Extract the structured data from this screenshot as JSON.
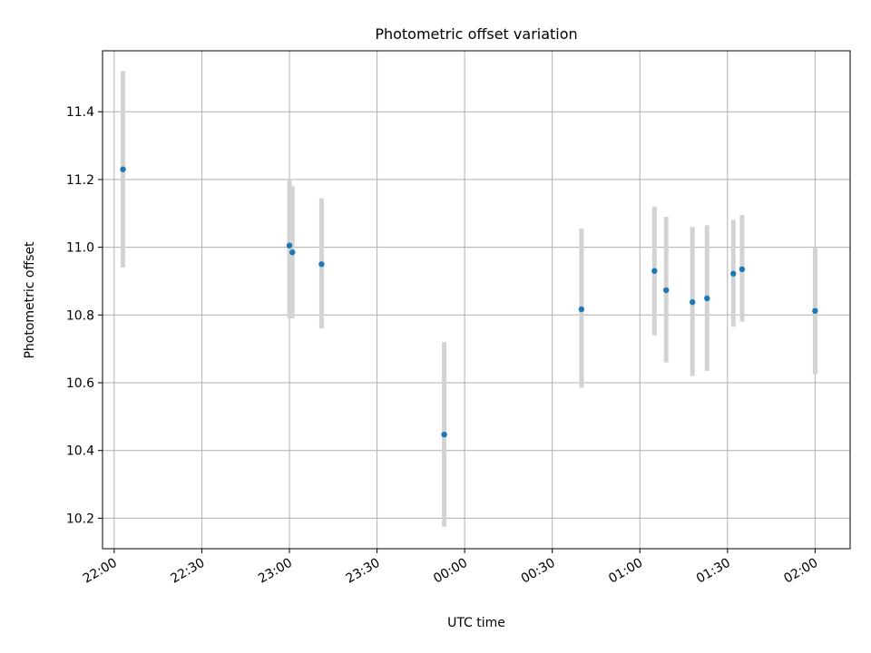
{
  "chart_data": {
    "type": "scatter",
    "title": "Photometric offset variation",
    "xlabel": "UTC time",
    "ylabel": "Photometric offset",
    "x_tick_labels": [
      "22:00",
      "22:30",
      "23:00",
      "23:30",
      "00:00",
      "00:30",
      "01:00",
      "01:30",
      "02:00"
    ],
    "y_tick_labels": [
      "10.2",
      "10.4",
      "10.6",
      "10.8",
      "11.0",
      "11.2",
      "11.4"
    ],
    "xlim": [
      "21:56",
      "02:12"
    ],
    "ylim": [
      10.11,
      11.58
    ],
    "grid": true,
    "series": [
      {
        "marker_color": "#1f77b4",
        "errorbar_color": "#d3d3d3",
        "points": [
          {
            "x": "22:03",
            "y": 11.23,
            "yerr_low": 10.94,
            "yerr_high": 11.52
          },
          {
            "x": "23:00",
            "y": 11.005,
            "yerr_low": 10.79,
            "yerr_high": 11.2
          },
          {
            "x": "23:01",
            "y": 10.985,
            "yerr_low": 10.79,
            "yerr_high": 11.18
          },
          {
            "x": "23:11",
            "y": 10.95,
            "yerr_low": 10.76,
            "yerr_high": 11.145
          },
          {
            "x": "23:53",
            "y": 10.447,
            "yerr_low": 10.175,
            "yerr_high": 10.72
          },
          {
            "x": "00:40",
            "y": 10.817,
            "yerr_low": 10.585,
            "yerr_high": 11.055
          },
          {
            "x": "01:05",
            "y": 10.93,
            "yerr_low": 10.74,
            "yerr_high": 11.12
          },
          {
            "x": "01:09",
            "y": 10.873,
            "yerr_low": 10.66,
            "yerr_high": 11.09
          },
          {
            "x": "01:18",
            "y": 10.838,
            "yerr_low": 10.62,
            "yerr_high": 11.06
          },
          {
            "x": "01:23",
            "y": 10.849,
            "yerr_low": 10.635,
            "yerr_high": 11.065
          },
          {
            "x": "01:32",
            "y": 10.922,
            "yerr_low": 10.765,
            "yerr_high": 11.08
          },
          {
            "x": "01:35",
            "y": 10.935,
            "yerr_low": 10.78,
            "yerr_high": 11.095
          },
          {
            "x": "02:00",
            "y": 10.812,
            "yerr_low": 10.625,
            "yerr_high": 11.0
          }
        ]
      }
    ]
  }
}
